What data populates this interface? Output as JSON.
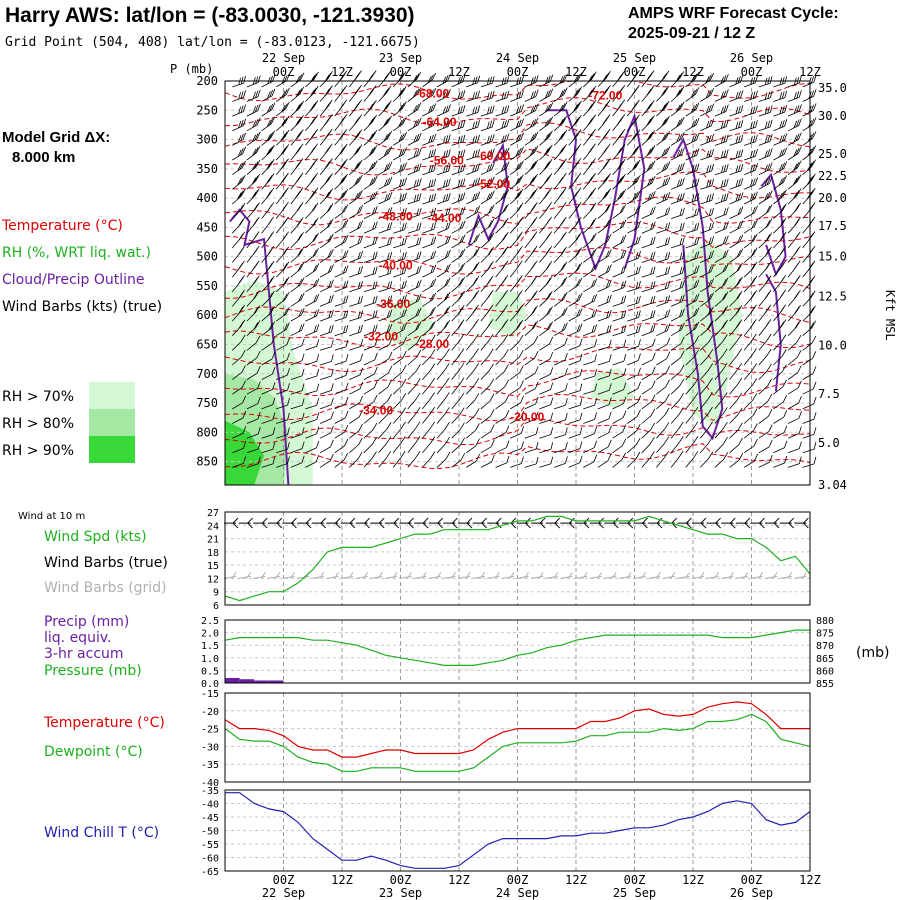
{
  "header": {
    "title": "Harry AWS:  lat/lon = (-83.0030, -121.3930)",
    "grid_point": "Grid Point (504, 408) lat/lon = (-83.0123, -121.6675)",
    "cycle_label": "AMPS WRF Forecast Cycle:",
    "cycle_value": "2025-09-21 / 12  Z"
  },
  "sidebar": {
    "grid_dx_label": "Model Grid ΔX:",
    "grid_dx_value": "8.000 km",
    "legend": [
      {
        "text": "Temperature (°C)",
        "color": "#e00000"
      },
      {
        "text": "RH (%, WRT liq. wat.)",
        "color": "#1fb01f"
      },
      {
        "text": "Cloud/Precip Outline",
        "color": "#6a1fa0"
      },
      {
        "text": "Wind Barbs (kts) (true)",
        "color": "#000000"
      }
    ],
    "rh_levels": [
      {
        "text": "RH > 70%",
        "color": "#d4f7d4"
      },
      {
        "text": "RH > 80%",
        "color": "#a4e8a4"
      },
      {
        "text": "RH > 90%",
        "color": "#38d838"
      }
    ]
  },
  "panels": {
    "wind10_title": "Wind at 10 m",
    "wind_legend": [
      {
        "text": "Wind Spd (kts)",
        "color": "#1fb01f"
      },
      {
        "text": "Wind Barbs (true)",
        "color": "#000000"
      },
      {
        "text": "Wind Barbs (grid)",
        "color": "#b0b0b0"
      }
    ],
    "precip_legend": [
      {
        "text": "Precip (mm)",
        "color": "#6a1fa0"
      },
      {
        "text": "liq. equiv.",
        "color": "#6a1fa0"
      },
      {
        "text": "3-hr accum",
        "color": "#6a1fa0"
      },
      {
        "text": "Pressure (mb)",
        "color": "#1fb01f"
      }
    ],
    "pressure_unit": "(mb)",
    "temp_legend": [
      {
        "text": "Temperature (°C)",
        "color": "#e00000"
      },
      {
        "text": "Dewpoint (°C)",
        "color": "#1fb01f"
      }
    ],
    "windchill_legend": {
      "text": "Wind Chill T (°C)",
      "color": "#2020b0"
    }
  },
  "chart_data": {
    "type": "line",
    "time_ticks": [
      "",
      "00Z",
      "12Z",
      "00Z",
      "12Z",
      "00Z",
      "12Z",
      "00Z",
      "12Z",
      "00Z",
      "12Z"
    ],
    "date_labels": [
      "22 Sep",
      "23 Sep",
      "24 Sep",
      "25 Sep",
      "26 Sep"
    ],
    "forecast_hours": [
      0,
      3,
      6,
      9,
      12,
      15,
      18,
      21,
      24,
      27,
      30,
      33,
      36,
      39,
      42,
      45,
      48,
      51,
      54,
      57,
      60,
      63,
      66,
      69,
      72,
      75,
      78,
      81,
      84,
      87,
      90,
      93,
      96,
      99,
      102,
      105,
      108,
      111,
      114,
      117,
      120
    ],
    "cross_section": {
      "y_axis_label": "P (mb)",
      "right_axis_label": "Kft MSL",
      "pressure_levels": [
        200,
        250,
        300,
        350,
        400,
        450,
        500,
        550,
        600,
        650,
        700,
        750,
        800,
        850
      ],
      "pressure_range": [
        200,
        890
      ],
      "height_kft": [
        {
          "label": "35.0",
          "p": 212
        },
        {
          "label": "30.0",
          "p": 260
        },
        {
          "label": "25.0",
          "p": 325
        },
        {
          "label": "22.5",
          "p": 362
        },
        {
          "label": "20.0",
          "p": 400
        },
        {
          "label": "17.5",
          "p": 448
        },
        {
          "label": "15.0",
          "p": 500
        },
        {
          "label": "12.5",
          "p": 568
        },
        {
          "label": "10.0",
          "p": 652
        },
        {
          "label": "7.5",
          "p": 735
        },
        {
          "label": "5.0",
          "p": 818
        },
        {
          "label": "3.04",
          "p": 890
        }
      ],
      "isotherm_labels": [
        {
          "text": "-68.00",
          "hour": 42.5,
          "p": 228
        },
        {
          "text": "-72.00",
          "hour": 78,
          "p": 232
        },
        {
          "text": "-64.00",
          "hour": 44,
          "p": 277
        },
        {
          "text": "-56.00",
          "hour": 45.5,
          "p": 343
        },
        {
          "text": "-60.00",
          "hour": 55,
          "p": 335
        },
        {
          "text": "-52.00",
          "hour": 55,
          "p": 383
        },
        {
          "text": "-48.00",
          "hour": 35,
          "p": 438
        },
        {
          "text": "-44.00",
          "hour": 45,
          "p": 441
        },
        {
          "text": "-40.00",
          "hour": 35,
          "p": 522
        },
        {
          "text": "-36.00",
          "hour": 34.5,
          "p": 588
        },
        {
          "text": "-32.00",
          "hour": 32,
          "p": 643
        },
        {
          "text": "-28.00",
          "hour": 42.5,
          "p": 656
        },
        {
          "text": "-34.00",
          "hour": 31,
          "p": 770
        },
        {
          "text": "-20.00",
          "hour": 62,
          "p": 781
        }
      ]
    },
    "wind10": {
      "ylim": [
        6,
        27
      ],
      "yticks": [
        6,
        9,
        12,
        15,
        18,
        21,
        24,
        27
      ],
      "speed_kts": [
        8,
        7,
        8,
        9,
        9,
        11,
        14,
        18,
        19,
        19,
        19,
        20,
        21,
        22,
        22,
        23,
        23,
        23,
        23,
        24,
        25,
        25,
        26,
        26,
        25,
        25,
        25,
        25,
        25,
        26,
        25,
        24,
        23,
        22,
        22,
        21,
        21,
        19,
        16,
        17,
        13
      ]
    },
    "precip_pressure": {
      "precip_ylim": [
        0,
        2.5
      ],
      "precip_ticks": [
        0.0,
        0.5,
        1.0,
        1.5,
        2.0,
        2.5
      ],
      "pressure_ylim": [
        855,
        880
      ],
      "pressure_ticks": [
        855,
        860,
        865,
        870,
        875,
        880
      ],
      "precip_mm": [
        0.2,
        0.15,
        0.1,
        0.1,
        0,
        0,
        0,
        0,
        0,
        0,
        0,
        0,
        0,
        0,
        0,
        0,
        0,
        0,
        0,
        0,
        0,
        0,
        0,
        0,
        0,
        0,
        0,
        0,
        0,
        0,
        0,
        0,
        0,
        0,
        0,
        0,
        0,
        0,
        0,
        0
      ],
      "pressure_mb": [
        872,
        873,
        873,
        873,
        873,
        873,
        872,
        872,
        871,
        870,
        868,
        866,
        865,
        864,
        863,
        862,
        862,
        862,
        863,
        864,
        866,
        867,
        869,
        870,
        872,
        873,
        874,
        874,
        874,
        874,
        874,
        874,
        874,
        874,
        873,
        873,
        873,
        874,
        875,
        876,
        876
      ]
    },
    "temperature": {
      "ylim": [
        -40,
        -15
      ],
      "yticks": [
        -40,
        -35,
        -30,
        -25,
        -20,
        -15
      ],
      "series": [
        {
          "name": "Temperature",
          "color": "#e00000",
          "values": [
            -22.5,
            -25,
            -25,
            -25.5,
            -27,
            -30,
            -31,
            -31,
            -33,
            -33,
            -32,
            -31,
            -31,
            -32,
            -32,
            -32,
            -32,
            -31,
            -28,
            -26,
            -25,
            -25,
            -25,
            -25,
            -25,
            -23,
            -23,
            -22,
            -20,
            -19.5,
            -21,
            -21.5,
            -21,
            -19,
            -18,
            -17.5,
            -18,
            -21,
            -25,
            -25,
            -25
          ]
        },
        {
          "name": "Dewpoint",
          "color": "#1fb01f",
          "values": [
            -25,
            -28,
            -28.5,
            -28.5,
            -30,
            -33,
            -34.5,
            -35,
            -37,
            -37,
            -36,
            -36,
            -36,
            -37,
            -37,
            -37,
            -37,
            -36,
            -33,
            -30,
            -29,
            -29,
            -29,
            -29,
            -28.5,
            -27,
            -27,
            -26,
            -26,
            -26,
            -25,
            -25.5,
            -25,
            -23,
            -23,
            -22.5,
            -21,
            -23,
            -28,
            -29,
            -30
          ]
        }
      ]
    },
    "wind_chill": {
      "ylim": [
        -65,
        -35
      ],
      "yticks": [
        -65,
        -60,
        -55,
        -50,
        -45,
        -40,
        -35
      ],
      "values": [
        -36,
        -36,
        -40,
        -42,
        -43,
        -47,
        -53,
        -57,
        -61,
        -61,
        -59.5,
        -61,
        -63,
        -64,
        -64,
        -64,
        -63,
        -59,
        -55,
        -53,
        -53,
        -53,
        -53,
        -52,
        -52,
        -51,
        -51,
        -50,
        -49,
        -49,
        -48,
        -46,
        -45,
        -43,
        -40,
        -39,
        -40,
        -46,
        -48,
        -47,
        -43
      ]
    }
  }
}
